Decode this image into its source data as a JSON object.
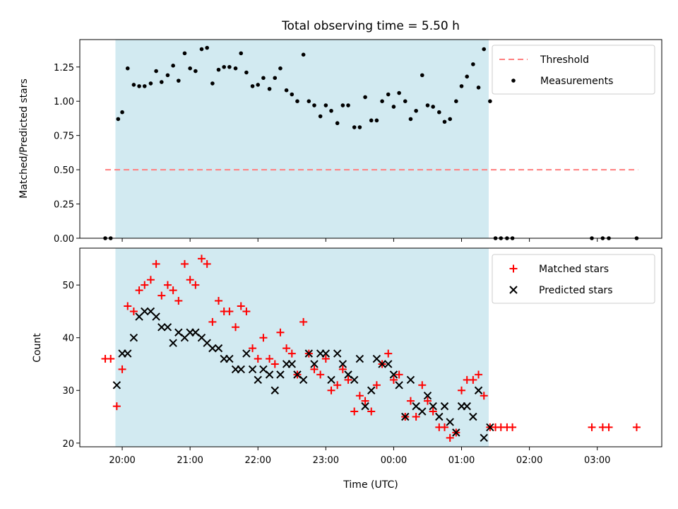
{
  "chart_data": {
    "title": "Total observing time = 5.50 h",
    "xlabel": "Time (UTC)",
    "colors": {
      "shade": "#add8e6",
      "threshold": "#ff7f7f",
      "measurements": "#000000",
      "matched": "#ff0000",
      "predicted": "#000000"
    },
    "x_ticks": [
      "20:00",
      "21:00",
      "22:00",
      "23:00",
      "00:00",
      "01:00",
      "02:00",
      "03:00"
    ],
    "x_tick_hours": [
      20,
      21,
      22,
      23,
      24,
      25,
      26,
      27
    ],
    "x_range_hours": [
      19.375,
      27.95
    ],
    "observing_window_hours": [
      19.9,
      25.4
    ],
    "panels": [
      {
        "type": "scatter",
        "ylabel": "Matched/Predicted stars",
        "ylim": [
          0,
          1.45
        ],
        "y_ticks": [
          0.0,
          0.25,
          0.5,
          0.75,
          1.0,
          1.25
        ],
        "y_tick_labels": [
          "0.00",
          "0.25",
          "0.50",
          "0.75",
          "1.00",
          "1.25"
        ],
        "legend_position": "top-right",
        "threshold": {
          "name": "Threshold",
          "y": 0.5,
          "x_range": [
            19.75,
            27.6
          ]
        },
        "series": [
          {
            "name": "Measurements",
            "points": [
              [
                19.75,
                0
              ],
              [
                19.83,
                0
              ],
              [
                19.94,
                0.87
              ],
              [
                20.0,
                0.92
              ],
              [
                20.08,
                1.24
              ],
              [
                20.17,
                1.12
              ],
              [
                20.25,
                1.11
              ],
              [
                20.33,
                1.11
              ],
              [
                20.42,
                1.13
              ],
              [
                20.5,
                1.22
              ],
              [
                20.58,
                1.14
              ],
              [
                20.67,
                1.19
              ],
              [
                20.75,
                1.26
              ],
              [
                20.83,
                1.15
              ],
              [
                20.92,
                1.35
              ],
              [
                21.0,
                1.24
              ],
              [
                21.08,
                1.22
              ],
              [
                21.17,
                1.38
              ],
              [
                21.25,
                1.39
              ],
              [
                21.33,
                1.13
              ],
              [
                21.42,
                1.23
              ],
              [
                21.5,
                1.25
              ],
              [
                21.58,
                1.25
              ],
              [
                21.67,
                1.24
              ],
              [
                21.75,
                1.35
              ],
              [
                21.83,
                1.21
              ],
              [
                21.92,
                1.11
              ],
              [
                22.0,
                1.12
              ],
              [
                22.08,
                1.17
              ],
              [
                22.17,
                1.09
              ],
              [
                22.25,
                1.17
              ],
              [
                22.33,
                1.24
              ],
              [
                22.42,
                1.08
              ],
              [
                22.5,
                1.05
              ],
              [
                22.58,
                1.0
              ],
              [
                22.67,
                1.34
              ],
              [
                22.75,
                1.0
              ],
              [
                22.83,
                0.97
              ],
              [
                22.92,
                0.89
              ],
              [
                23.0,
                0.97
              ],
              [
                23.08,
                0.93
              ],
              [
                23.17,
                0.84
              ],
              [
                23.25,
                0.97
              ],
              [
                23.33,
                0.97
              ],
              [
                23.42,
                0.81
              ],
              [
                23.5,
                0.81
              ],
              [
                23.58,
                1.03
              ],
              [
                23.67,
                0.86
              ],
              [
                23.75,
                0.86
              ],
              [
                23.83,
                1.0
              ],
              [
                23.92,
                1.05
              ],
              [
                24.0,
                0.96
              ],
              [
                24.08,
                1.06
              ],
              [
                24.17,
                1.0
              ],
              [
                24.25,
                0.87
              ],
              [
                24.33,
                0.93
              ],
              [
                24.42,
                1.19
              ],
              [
                24.5,
                0.97
              ],
              [
                24.58,
                0.96
              ],
              [
                24.67,
                0.92
              ],
              [
                24.75,
                0.85
              ],
              [
                24.83,
                0.87
              ],
              [
                24.92,
                1.0
              ],
              [
                25.0,
                1.11
              ],
              [
                25.08,
                1.18
              ],
              [
                25.17,
                1.27
              ],
              [
                25.25,
                1.1
              ],
              [
                25.33,
                1.38
              ],
              [
                25.42,
                1.0
              ],
              [
                25.5,
                0
              ],
              [
                25.58,
                0
              ],
              [
                25.67,
                0
              ],
              [
                25.75,
                0
              ],
              [
                26.92,
                0
              ],
              [
                27.08,
                0
              ],
              [
                27.17,
                0
              ],
              [
                27.58,
                0
              ]
            ]
          }
        ]
      },
      {
        "type": "scatter",
        "ylabel": "Count",
        "ylim": [
          19.3,
          57
        ],
        "y_ticks": [
          20,
          30,
          40,
          50
        ],
        "y_tick_labels": [
          "20",
          "30",
          "40",
          "50"
        ],
        "legend_position": "top-right",
        "series": [
          {
            "name": "Matched stars",
            "marker": "plus",
            "points": [
              [
                19.75,
                36
              ],
              [
                19.83,
                36
              ],
              [
                19.92,
                27
              ],
              [
                20.0,
                34
              ],
              [
                20.08,
                46
              ],
              [
                20.17,
                45
              ],
              [
                20.25,
                49
              ],
              [
                20.33,
                50
              ],
              [
                20.42,
                51
              ],
              [
                20.5,
                54
              ],
              [
                20.58,
                48
              ],
              [
                20.67,
                50
              ],
              [
                20.75,
                49
              ],
              [
                20.83,
                47
              ],
              [
                20.92,
                54
              ],
              [
                21.0,
                51
              ],
              [
                21.08,
                50
              ],
              [
                21.17,
                55
              ],
              [
                21.25,
                54
              ],
              [
                21.33,
                43
              ],
              [
                21.42,
                47
              ],
              [
                21.5,
                45
              ],
              [
                21.58,
                45
              ],
              [
                21.67,
                42
              ],
              [
                21.75,
                46
              ],
              [
                21.83,
                45
              ],
              [
                21.92,
                38
              ],
              [
                22.0,
                36
              ],
              [
                22.08,
                40
              ],
              [
                22.17,
                36
              ],
              [
                22.25,
                35
              ],
              [
                22.33,
                41
              ],
              [
                22.42,
                38
              ],
              [
                22.5,
                37
              ],
              [
                22.58,
                33
              ],
              [
                22.67,
                43
              ],
              [
                22.75,
                37
              ],
              [
                22.83,
                34
              ],
              [
                22.92,
                33
              ],
              [
                23.0,
                36
              ],
              [
                23.08,
                30
              ],
              [
                23.17,
                31
              ],
              [
                23.25,
                34
              ],
              [
                23.33,
                32
              ],
              [
                23.42,
                26
              ],
              [
                23.5,
                29
              ],
              [
                23.58,
                28
              ],
              [
                23.67,
                26
              ],
              [
                23.75,
                31
              ],
              [
                23.83,
                35
              ],
              [
                23.92,
                37
              ],
              [
                24.0,
                32
              ],
              [
                24.08,
                33
              ],
              [
                24.17,
                25
              ],
              [
                24.25,
                28
              ],
              [
                24.33,
                25
              ],
              [
                24.42,
                31
              ],
              [
                24.5,
                28
              ],
              [
                24.58,
                26
              ],
              [
                24.67,
                23
              ],
              [
                24.75,
                23
              ],
              [
                24.83,
                21
              ],
              [
                24.92,
                22
              ],
              [
                25.0,
                30
              ],
              [
                25.08,
                32
              ],
              [
                25.17,
                32
              ],
              [
                25.25,
                33
              ],
              [
                25.33,
                29
              ],
              [
                25.42,
                23
              ],
              [
                25.5,
                23
              ],
              [
                25.58,
                23
              ],
              [
                25.67,
                23
              ],
              [
                25.75,
                23
              ],
              [
                26.92,
                23
              ],
              [
                27.08,
                23
              ],
              [
                27.17,
                23
              ],
              [
                27.58,
                23
              ]
            ]
          },
          {
            "name": "Predicted stars",
            "marker": "x",
            "points": [
              [
                19.92,
                31
              ],
              [
                20.0,
                37
              ],
              [
                20.08,
                37
              ],
              [
                20.17,
                40
              ],
              [
                20.25,
                44
              ],
              [
                20.33,
                45
              ],
              [
                20.42,
                45
              ],
              [
                20.5,
                44
              ],
              [
                20.58,
                42
              ],
              [
                20.67,
                42
              ],
              [
                20.75,
                39
              ],
              [
                20.83,
                41
              ],
              [
                20.92,
                40
              ],
              [
                21.0,
                41
              ],
              [
                21.08,
                41
              ],
              [
                21.17,
                40
              ],
              [
                21.25,
                39
              ],
              [
                21.33,
                38
              ],
              [
                21.42,
                38
              ],
              [
                21.5,
                36
              ],
              [
                21.58,
                36
              ],
              [
                21.67,
                34
              ],
              [
                21.75,
                34
              ],
              [
                21.83,
                37
              ],
              [
                21.92,
                34
              ],
              [
                22.0,
                32
              ],
              [
                22.08,
                34
              ],
              [
                22.17,
                33
              ],
              [
                22.25,
                30
              ],
              [
                22.33,
                33
              ],
              [
                22.42,
                35
              ],
              [
                22.5,
                35
              ],
              [
                22.58,
                33
              ],
              [
                22.67,
                32
              ],
              [
                22.75,
                37
              ],
              [
                22.83,
                35
              ],
              [
                22.92,
                37
              ],
              [
                23.0,
                37
              ],
              [
                23.08,
                32
              ],
              [
                23.17,
                37
              ],
              [
                23.25,
                35
              ],
              [
                23.33,
                33
              ],
              [
                23.42,
                32
              ],
              [
                23.5,
                36
              ],
              [
                23.58,
                27
              ],
              [
                23.67,
                30
              ],
              [
                23.75,
                36
              ],
              [
                23.83,
                35
              ],
              [
                23.92,
                35
              ],
              [
                24.0,
                33
              ],
              [
                24.08,
                31
              ],
              [
                24.17,
                25
              ],
              [
                24.25,
                32
              ],
              [
                24.33,
                27
              ],
              [
                24.42,
                26
              ],
              [
                24.5,
                29
              ],
              [
                24.58,
                27
              ],
              [
                24.67,
                25
              ],
              [
                24.75,
                27
              ],
              [
                24.83,
                24
              ],
              [
                24.92,
                22
              ],
              [
                25.0,
                27
              ],
              [
                25.08,
                27
              ],
              [
                25.17,
                25
              ],
              [
                25.25,
                30
              ],
              [
                25.33,
                21
              ],
              [
                25.42,
                23
              ]
            ]
          }
        ]
      }
    ]
  }
}
